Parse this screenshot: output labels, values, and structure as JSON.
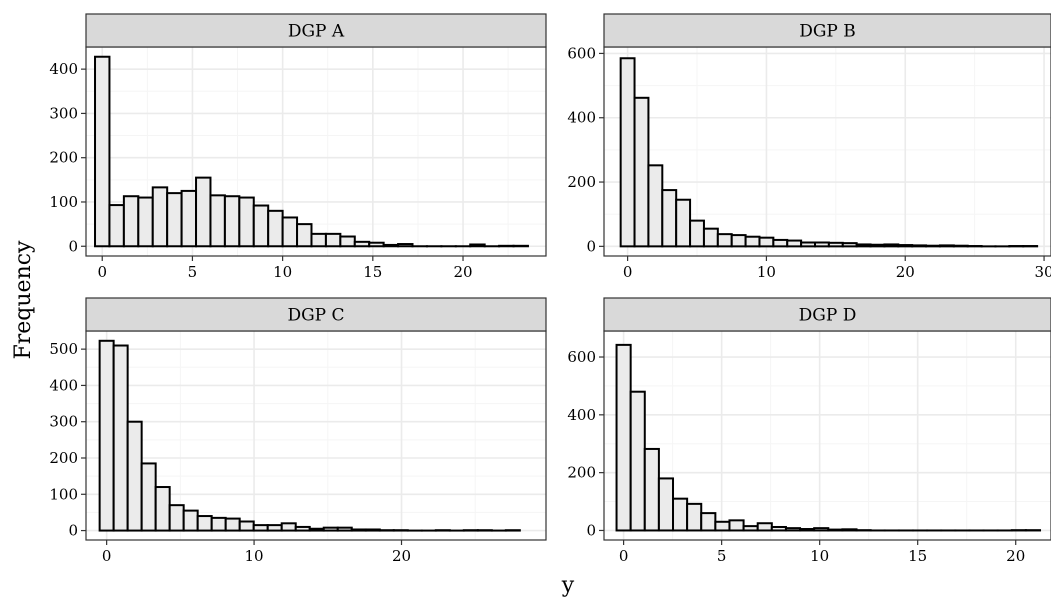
{
  "chart_data": {
    "type": "bar",
    "xlabel": "y",
    "ylabel": "Frequency",
    "grid": true,
    "panels": [
      {
        "title": "DGP A",
        "bin_width": 0.8,
        "x_ticks": [
          0,
          5,
          10,
          15,
          20
        ],
        "y_ticks": [
          0,
          100,
          200,
          300,
          400
        ],
        "xlim": [
          -0.9,
          24.6
        ],
        "ylim": [
          -22,
          450
        ],
        "bins": [
          {
            "x": 0,
            "y": 428
          },
          {
            "x": 0.8,
            "y": 93
          },
          {
            "x": 1.6,
            "y": 113
          },
          {
            "x": 2.4,
            "y": 110
          },
          {
            "x": 3.2,
            "y": 133
          },
          {
            "x": 4.0,
            "y": 120
          },
          {
            "x": 4.8,
            "y": 125
          },
          {
            "x": 5.6,
            "y": 155
          },
          {
            "x": 6.4,
            "y": 115
          },
          {
            "x": 7.2,
            "y": 113
          },
          {
            "x": 8.0,
            "y": 110
          },
          {
            "x": 8.8,
            "y": 92
          },
          {
            "x": 9.6,
            "y": 80
          },
          {
            "x": 10.4,
            "y": 65
          },
          {
            "x": 11.2,
            "y": 50
          },
          {
            "x": 12.0,
            "y": 28
          },
          {
            "x": 12.8,
            "y": 28
          },
          {
            "x": 13.6,
            "y": 22
          },
          {
            "x": 14.4,
            "y": 10
          },
          {
            "x": 15.2,
            "y": 8
          },
          {
            "x": 16.0,
            "y": 3
          },
          {
            "x": 16.8,
            "y": 5
          },
          {
            "x": 17.6,
            "y": 0
          },
          {
            "x": 18.4,
            "y": 0
          },
          {
            "x": 19.2,
            "y": 0
          },
          {
            "x": 20.0,
            "y": 0
          },
          {
            "x": 20.8,
            "y": 4
          },
          {
            "x": 21.6,
            "y": 0
          },
          {
            "x": 22.4,
            "y": 1
          },
          {
            "x": 23.2,
            "y": 1
          }
        ]
      },
      {
        "title": "DGP B",
        "bin_width": 1.0,
        "x_ticks": [
          0,
          10,
          20,
          30
        ],
        "y_ticks": [
          0,
          200,
          400,
          600
        ],
        "xlim": [
          -1.7,
          30.5
        ],
        "ylim": [
          -30,
          620
        ],
        "bins": [
          {
            "x": 0,
            "y": 585
          },
          {
            "x": 1,
            "y": 462
          },
          {
            "x": 2,
            "y": 252
          },
          {
            "x": 3,
            "y": 175
          },
          {
            "x": 4,
            "y": 145
          },
          {
            "x": 5,
            "y": 80
          },
          {
            "x": 6,
            "y": 55
          },
          {
            "x": 7,
            "y": 38
          },
          {
            "x": 8,
            "y": 35
          },
          {
            "x": 9,
            "y": 30
          },
          {
            "x": 10,
            "y": 27
          },
          {
            "x": 11,
            "y": 20
          },
          {
            "x": 12,
            "y": 18
          },
          {
            "x": 13,
            "y": 12
          },
          {
            "x": 14,
            "y": 12
          },
          {
            "x": 15,
            "y": 11
          },
          {
            "x": 16,
            "y": 10
          },
          {
            "x": 17,
            "y": 6
          },
          {
            "x": 18,
            "y": 5
          },
          {
            "x": 19,
            "y": 6
          },
          {
            "x": 20,
            "y": 4
          },
          {
            "x": 21,
            "y": 3
          },
          {
            "x": 22,
            "y": 2
          },
          {
            "x": 23,
            "y": 3
          },
          {
            "x": 24,
            "y": 2
          },
          {
            "x": 25,
            "y": 1
          },
          {
            "x": 26,
            "y": 0
          },
          {
            "x": 27,
            "y": 0
          },
          {
            "x": 28,
            "y": 1
          },
          {
            "x": 29,
            "y": 1
          }
        ]
      },
      {
        "title": "DGP C",
        "bin_width": 0.95,
        "x_ticks": [
          0,
          10,
          20
        ],
        "y_ticks": [
          0,
          100,
          200,
          300,
          400,
          500
        ],
        "xlim": [
          -1.4,
          29.8
        ],
        "ylim": [
          -26,
          550
        ],
        "bins": [
          {
            "x": 0,
            "y": 523
          },
          {
            "x": 0.95,
            "y": 510
          },
          {
            "x": 1.9,
            "y": 300
          },
          {
            "x": 2.85,
            "y": 185
          },
          {
            "x": 3.8,
            "y": 120
          },
          {
            "x": 4.75,
            "y": 70
          },
          {
            "x": 5.7,
            "y": 55
          },
          {
            "x": 6.65,
            "y": 40
          },
          {
            "x": 7.6,
            "y": 35
          },
          {
            "x": 8.55,
            "y": 33
          },
          {
            "x": 9.5,
            "y": 25
          },
          {
            "x": 10.45,
            "y": 15
          },
          {
            "x": 11.4,
            "y": 15
          },
          {
            "x": 12.35,
            "y": 20
          },
          {
            "x": 13.3,
            "y": 10
          },
          {
            "x": 14.25,
            "y": 5
          },
          {
            "x": 15.2,
            "y": 8
          },
          {
            "x": 16.15,
            "y": 8
          },
          {
            "x": 17.1,
            "y": 3
          },
          {
            "x": 18.05,
            "y": 3
          },
          {
            "x": 19.0,
            "y": 1
          },
          {
            "x": 19.95,
            "y": 1
          },
          {
            "x": 20.9,
            "y": 0
          },
          {
            "x": 21.85,
            "y": 0
          },
          {
            "x": 22.8,
            "y": 1
          },
          {
            "x": 23.75,
            "y": 0
          },
          {
            "x": 24.7,
            "y": 1
          },
          {
            "x": 25.65,
            "y": 1
          },
          {
            "x": 26.6,
            "y": 0
          },
          {
            "x": 27.55,
            "y": 1
          }
        ]
      },
      {
        "title": "DGP D",
        "bin_width": 0.72,
        "x_ticks": [
          0,
          5,
          10,
          15,
          20
        ],
        "y_ticks": [
          0,
          200,
          400,
          600
        ],
        "xlim": [
          -1.0,
          21.8
        ],
        "ylim": [
          -33,
          690
        ],
        "bins": [
          {
            "x": 0,
            "y": 642
          },
          {
            "x": 0.72,
            "y": 480
          },
          {
            "x": 1.44,
            "y": 282
          },
          {
            "x": 2.16,
            "y": 180
          },
          {
            "x": 2.88,
            "y": 110
          },
          {
            "x": 3.6,
            "y": 92
          },
          {
            "x": 4.32,
            "y": 60
          },
          {
            "x": 5.04,
            "y": 30
          },
          {
            "x": 5.76,
            "y": 35
          },
          {
            "x": 6.48,
            "y": 15
          },
          {
            "x": 7.2,
            "y": 25
          },
          {
            "x": 7.92,
            "y": 12
          },
          {
            "x": 8.64,
            "y": 8
          },
          {
            "x": 9.36,
            "y": 5
          },
          {
            "x": 10.08,
            "y": 8
          },
          {
            "x": 10.8,
            "y": 3
          },
          {
            "x": 11.52,
            "y": 4
          },
          {
            "x": 12.24,
            "y": 1
          },
          {
            "x": 12.96,
            "y": 0
          },
          {
            "x": 13.68,
            "y": 0
          },
          {
            "x": 14.4,
            "y": 0
          },
          {
            "x": 15.12,
            "y": 0
          },
          {
            "x": 15.84,
            "y": 0
          },
          {
            "x": 16.56,
            "y": 0
          },
          {
            "x": 17.28,
            "y": 0
          },
          {
            "x": 18.0,
            "y": 0
          },
          {
            "x": 18.72,
            "y": 0
          },
          {
            "x": 19.44,
            "y": 0
          },
          {
            "x": 20.16,
            "y": 1
          },
          {
            "x": 20.88,
            "y": 1
          }
        ]
      }
    ]
  },
  "colors": {
    "bar_fill": "#ebebeb",
    "bar_stroke": "#000000",
    "strip_fill": "#d9d9d9",
    "grid_major": "#ebebeb",
    "grid_minor": "#f5f5f5",
    "panel_border": "#333333"
  }
}
